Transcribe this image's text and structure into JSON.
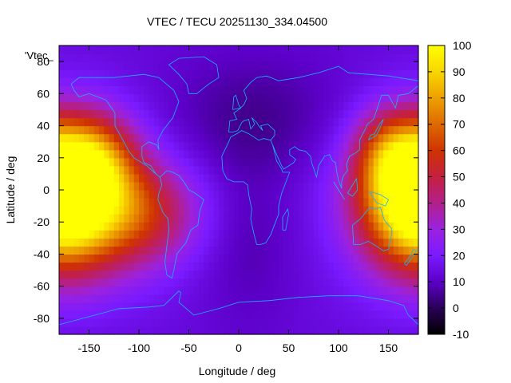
{
  "chart_data": {
    "type": "heatmap",
    "title": "VTEC / TECU 20251130_334.04500",
    "xlabel": "Longitude / deg",
    "ylabel": "Latitude / deg",
    "series_label": "'Vtec_",
    "xlim": [
      -180,
      180
    ],
    "ylim": [
      -90,
      90
    ],
    "x_ticks": [
      -150,
      -100,
      -50,
      0,
      50,
      100,
      150
    ],
    "y_ticks": [
      -80,
      -60,
      -40,
      -20,
      0,
      20,
      40,
      60,
      80
    ],
    "colorbar": {
      "range": [
        -10,
        100
      ],
      "ticks": [
        -10,
        0,
        10,
        20,
        30,
        40,
        50,
        60,
        70,
        80,
        90,
        100
      ],
      "palette": [
        "#000000",
        "#2a0058",
        "#5c00c8",
        "#7a1aff",
        "#9b22e0",
        "#b3208a",
        "#c42040",
        "#cf3300",
        "#dd6a00",
        "#eda000",
        "#f8d600",
        "#ffff00"
      ]
    },
    "grid": false,
    "colorbar_position": "right",
    "features": {
      "background_tecu": 18,
      "hotspots": [
        {
          "lon": -170,
          "lat": -10,
          "peak_tecu": 82,
          "lon_radius": 45,
          "lat_radius": 30
        },
        {
          "lon": -145,
          "lat": 20,
          "peak_tecu": 55,
          "lon_radius": 30,
          "lat_radius": 20
        },
        {
          "lon": -95,
          "lat": -15,
          "peak_tecu": 50,
          "lon_radius": 40,
          "lat_radius": 22
        },
        {
          "lon": 175,
          "lat": 0,
          "peak_tecu": 72,
          "lon_radius": 35,
          "lat_radius": 28
        },
        {
          "lon": 150,
          "lat": 25,
          "peak_tecu": 45,
          "lon_radius": 25,
          "lat_radius": 18
        }
      ],
      "lows": [
        {
          "lon": 15,
          "lat": 45,
          "min_tecu": 8,
          "lon_radius": 70,
          "lat_radius": 30
        },
        {
          "lon": 10,
          "lat": -30,
          "min_tecu": 10,
          "lon_radius": 40,
          "lat_radius": 40
        }
      ]
    }
  }
}
